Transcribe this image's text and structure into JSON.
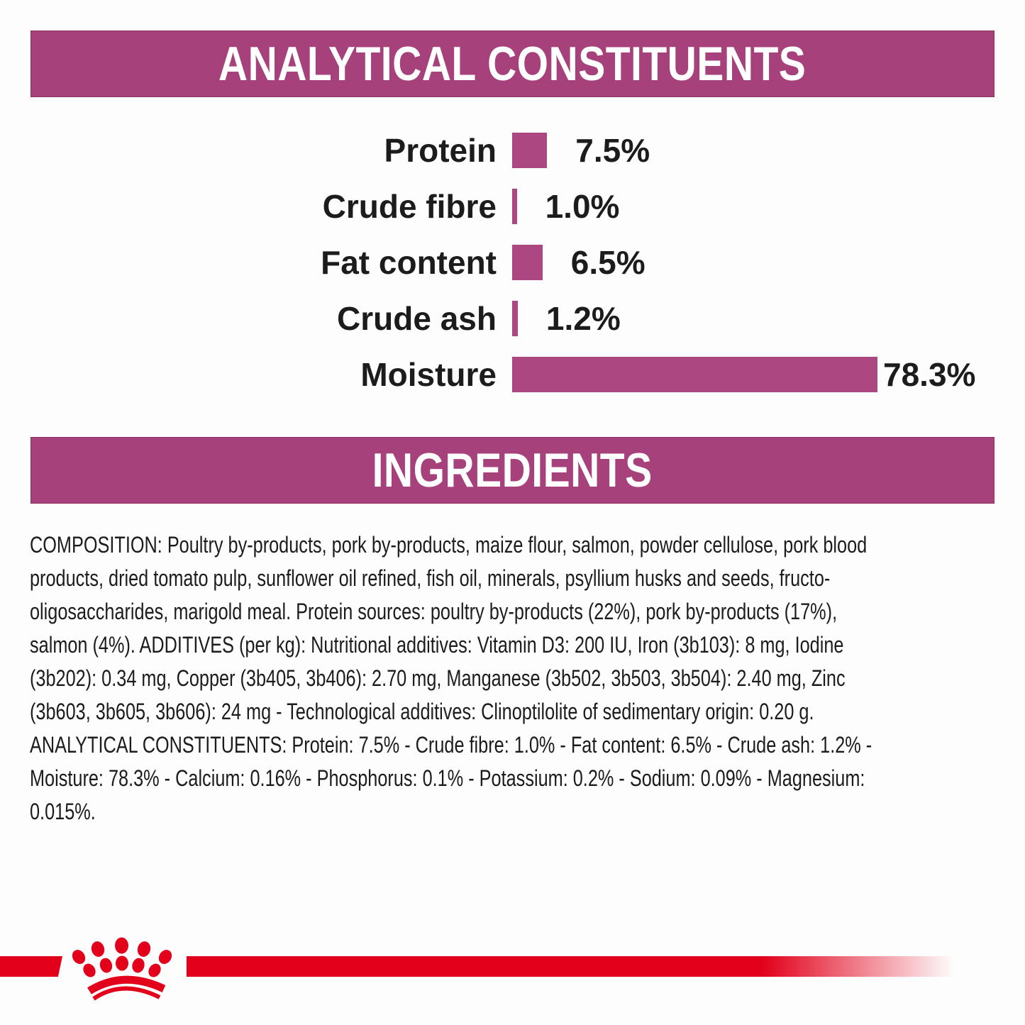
{
  "colors": {
    "banner_bg": "#A6417B",
    "banner_text": "#FFFFFF",
    "chart_bar": "#AC4781",
    "brand_red": "#E2001A",
    "text": "#1C1C1C",
    "background": "#FDFDFD"
  },
  "sections": {
    "analytical": {
      "title": "ANALYTICAL CONSTITUENTS"
    },
    "ingredients": {
      "title": "INGREDIENTS"
    }
  },
  "chart_data": {
    "type": "bar",
    "orientation": "horizontal",
    "title": "ANALYTICAL CONSTITUENTS",
    "categories": [
      "Protein",
      "Crude fibre",
      "Fat content",
      "Crude ash",
      "Moisture"
    ],
    "values": [
      7.5,
      1.0,
      6.5,
      1.2,
      78.3
    ],
    "value_labels": [
      "7.5%",
      "1.0%",
      "6.5%",
      "1.2%",
      "78.3%"
    ],
    "unit": "%",
    "xlim": [
      0,
      80
    ],
    "grid": false,
    "legend": "none",
    "bar_color": "#AC4781"
  },
  "composition": {
    "lines": [
      "COMPOSITION: Poultry by-products, pork by-products, maize flour, salmon, powder cellulose, pork blood",
      "products, dried tomato pulp, sunflower oil refined, fish oil, minerals, psyllium husks and seeds, fructo-",
      "oligosaccharides, marigold meal. Protein sources: poultry by-products (22%), pork by-products (17%),",
      "salmon (4%). ADDITIVES (per kg): Nutritional additives: Vitamin D3: 200 IU, Iron (3b103): 8 mg, Iodine",
      "(3b202): 0.34 mg, Copper (3b405, 3b406): 2.70 mg, Manganese (3b502, 3b503, 3b504): 2.40 mg, Zinc",
      "(3b603, 3b605, 3b606): 24 mg - Technological additives: Clinoptilolite of sedimentary origin: 0.20 g.",
      "ANALYTICAL CONSTITUENTS: Protein: 7.5% - Crude fibre: 1.0% - Fat content: 6.5% - Crude ash: 1.2% -",
      "Moisture: 78.3% - Calcium: 0.16% - Phosphorus: 0.1% - Potassium: 0.2% - Sodium: 0.09% - Magnesium:",
      "0.015%."
    ]
  },
  "footer": {
    "logo_icon": "royal-canin-crown",
    "stripe": "red-accent-stripe"
  }
}
